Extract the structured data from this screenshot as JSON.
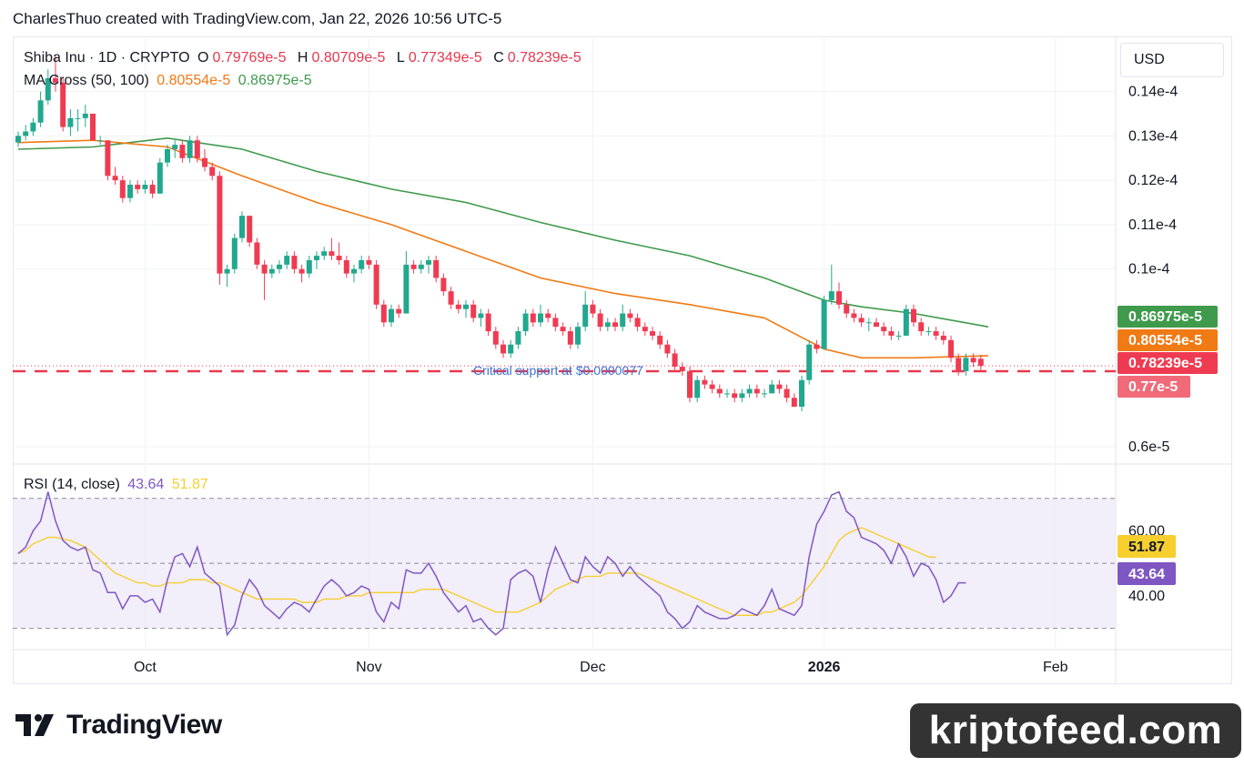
{
  "header": {
    "text": "CharlesThuo created with TradingView.com, Jan 22, 2026 10:56 UTC-5"
  },
  "legend": {
    "symbol": "Shiba Inu · 1D · CRYPTO",
    "o_label": "O",
    "o_value": "0.79769e-5",
    "h_label": "H",
    "h_value": "0.80709e-5",
    "l_label": "L",
    "l_value": "0.77349e-5",
    "c_label": "C",
    "c_value": "0.78239e-5",
    "ma_label": "MA Cross (50, 100)",
    "ma_fast": "0.80554e-5",
    "ma_slow": "0.86975e-5"
  },
  "rsi_legend": {
    "label": "RSI (14, close)",
    "rsi": "43.64",
    "rsi_ma": "51.87"
  },
  "currency_button": "USD",
  "annotation": "Critical support at $0.0000077",
  "branding": {
    "logo": "TradingView",
    "watermark": "kriptofeed.com"
  },
  "colors": {
    "up": "#22a88e",
    "down": "#ef3b52",
    "ma_fast": "#f07a14",
    "ma_slow": "#3f9a4c",
    "rsi": "#7e57c2",
    "rsi_ma": "#f6cf2f",
    "support": "#e8384e"
  },
  "chart_data": {
    "type": "candlestick",
    "title": "Shiba Inu · 1D · CRYPTO",
    "y_scale_unit": "e-5",
    "ylim": [
      0.565,
      1.52
    ],
    "y_ticks": [
      {
        "v": 1.4,
        "label": "0.14e-4"
      },
      {
        "v": 1.3,
        "label": "0.13e-4"
      },
      {
        "v": 1.2,
        "label": "0.12e-4"
      },
      {
        "v": 1.1,
        "label": "0.11e-4"
      },
      {
        "v": 1.0,
        "label": "0.1e-4"
      },
      {
        "v": 0.6,
        "label": "0.6e-5"
      }
    ],
    "x_ticks": [
      {
        "i": 17,
        "label": "Oct"
      },
      {
        "i": 47,
        "label": "Nov"
      },
      {
        "i": 77,
        "label": "Dec"
      },
      {
        "i": 108,
        "label": "2026"
      },
      {
        "i": 139,
        "label": "Feb"
      }
    ],
    "total_slots": 146,
    "candles": [
      [
        1.285,
        1.31,
        1.275,
        1.3
      ],
      [
        1.3,
        1.325,
        1.29,
        1.31
      ],
      [
        1.31,
        1.34,
        1.3,
        1.33
      ],
      [
        1.33,
        1.4,
        1.32,
        1.38
      ],
      [
        1.38,
        1.45,
        1.37,
        1.43
      ],
      [
        1.43,
        1.48,
        1.4,
        1.42
      ],
      [
        1.42,
        1.43,
        1.31,
        1.32
      ],
      [
        1.32,
        1.36,
        1.3,
        1.34
      ],
      [
        1.34,
        1.36,
        1.31,
        1.34
      ],
      [
        1.34,
        1.37,
        1.32,
        1.35
      ],
      [
        1.35,
        1.35,
        1.29,
        1.29
      ],
      [
        1.29,
        1.3,
        1.28,
        1.29
      ],
      [
        1.29,
        1.29,
        1.2,
        1.21
      ],
      [
        1.21,
        1.23,
        1.19,
        1.2
      ],
      [
        1.2,
        1.21,
        1.15,
        1.16
      ],
      [
        1.16,
        1.2,
        1.15,
        1.19
      ],
      [
        1.19,
        1.2,
        1.17,
        1.18
      ],
      [
        1.18,
        1.2,
        1.17,
        1.19
      ],
      [
        1.19,
        1.2,
        1.16,
        1.17
      ],
      [
        1.17,
        1.25,
        1.17,
        1.24
      ],
      [
        1.24,
        1.28,
        1.23,
        1.27
      ],
      [
        1.27,
        1.29,
        1.25,
        1.28
      ],
      [
        1.28,
        1.29,
        1.24,
        1.25
      ],
      [
        1.25,
        1.3,
        1.24,
        1.29
      ],
      [
        1.29,
        1.3,
        1.24,
        1.25
      ],
      [
        1.25,
        1.27,
        1.22,
        1.23
      ],
      [
        1.23,
        1.24,
        1.2,
        1.21
      ],
      [
        1.21,
        1.22,
        0.965,
        0.99
      ],
      [
        0.99,
        1.01,
        0.96,
        1.0
      ],
      [
        1.0,
        1.08,
        0.99,
        1.07
      ],
      [
        1.07,
        1.13,
        1.06,
        1.12
      ],
      [
        1.12,
        1.12,
        1.05,
        1.06
      ],
      [
        1.06,
        1.07,
        1.0,
        1.01
      ],
      [
        1.01,
        1.02,
        0.93,
        0.99
      ],
      [
        0.99,
        1.01,
        0.98,
        1.0
      ],
      [
        1.0,
        1.02,
        0.99,
        1.01
      ],
      [
        1.01,
        1.04,
        1.0,
        1.03
      ],
      [
        1.03,
        1.04,
        0.99,
        1.0
      ],
      [
        1.0,
        1.01,
        0.97,
        0.99
      ],
      [
        0.99,
        1.03,
        0.98,
        1.02
      ],
      [
        1.02,
        1.04,
        1.0,
        1.03
      ],
      [
        1.03,
        1.05,
        1.02,
        1.04
      ],
      [
        1.04,
        1.07,
        1.02,
        1.03
      ],
      [
        1.03,
        1.06,
        1.01,
        1.02
      ],
      [
        1.02,
        1.03,
        0.98,
        0.99
      ],
      [
        0.99,
        1.01,
        0.97,
        1.0
      ],
      [
        1.0,
        1.03,
        0.99,
        1.02
      ],
      [
        1.02,
        1.03,
        1.0,
        1.01
      ],
      [
        1.01,
        1.02,
        0.91,
        0.92
      ],
      [
        0.92,
        0.93,
        0.87,
        0.88
      ],
      [
        0.88,
        0.92,
        0.87,
        0.91
      ],
      [
        0.91,
        0.92,
        0.89,
        0.9
      ],
      [
        0.9,
        1.04,
        0.9,
        1.01
      ],
      [
        1.01,
        1.02,
        0.99,
        1.0
      ],
      [
        1.0,
        1.02,
        0.99,
        1.01
      ],
      [
        1.01,
        1.03,
        0.99,
        1.02
      ],
      [
        1.02,
        1.03,
        0.97,
        0.98
      ],
      [
        0.98,
        0.99,
        0.94,
        0.95
      ],
      [
        0.95,
        0.96,
        0.91,
        0.92
      ],
      [
        0.92,
        0.93,
        0.9,
        0.91
      ],
      [
        0.91,
        0.93,
        0.89,
        0.92
      ],
      [
        0.92,
        0.93,
        0.88,
        0.89
      ],
      [
        0.89,
        0.91,
        0.87,
        0.9
      ],
      [
        0.9,
        0.91,
        0.85,
        0.86
      ],
      [
        0.86,
        0.87,
        0.82,
        0.83
      ],
      [
        0.83,
        0.84,
        0.8,
        0.81
      ],
      [
        0.81,
        0.84,
        0.8,
        0.83
      ],
      [
        0.83,
        0.87,
        0.82,
        0.86
      ],
      [
        0.86,
        0.91,
        0.85,
        0.9
      ],
      [
        0.9,
        0.91,
        0.87,
        0.88
      ],
      [
        0.88,
        0.92,
        0.87,
        0.9
      ],
      [
        0.9,
        0.91,
        0.88,
        0.89
      ],
      [
        0.89,
        0.9,
        0.86,
        0.87
      ],
      [
        0.87,
        0.88,
        0.85,
        0.86
      ],
      [
        0.86,
        0.87,
        0.82,
        0.83
      ],
      [
        0.83,
        0.88,
        0.82,
        0.87
      ],
      [
        0.87,
        0.95,
        0.86,
        0.92
      ],
      [
        0.92,
        0.93,
        0.89,
        0.9
      ],
      [
        0.9,
        0.91,
        0.86,
        0.87
      ],
      [
        0.87,
        0.89,
        0.86,
        0.88
      ],
      [
        0.88,
        0.89,
        0.86,
        0.87
      ],
      [
        0.87,
        0.92,
        0.86,
        0.9
      ],
      [
        0.9,
        0.91,
        0.88,
        0.89
      ],
      [
        0.89,
        0.9,
        0.86,
        0.87
      ],
      [
        0.87,
        0.88,
        0.85,
        0.86
      ],
      [
        0.86,
        0.87,
        0.84,
        0.85
      ],
      [
        0.85,
        0.86,
        0.82,
        0.83
      ],
      [
        0.83,
        0.84,
        0.8,
        0.81
      ],
      [
        0.81,
        0.82,
        0.77,
        0.78
      ],
      [
        0.78,
        0.79,
        0.76,
        0.77
      ],
      [
        0.77,
        0.78,
        0.7,
        0.71
      ],
      [
        0.71,
        0.76,
        0.7,
        0.75
      ],
      [
        0.75,
        0.76,
        0.73,
        0.74
      ],
      [
        0.74,
        0.75,
        0.72,
        0.73
      ],
      [
        0.73,
        0.74,
        0.71,
        0.72
      ],
      [
        0.72,
        0.73,
        0.71,
        0.72
      ],
      [
        0.72,
        0.73,
        0.7,
        0.71
      ],
      [
        0.71,
        0.73,
        0.7,
        0.72
      ],
      [
        0.72,
        0.74,
        0.71,
        0.73
      ],
      [
        0.73,
        0.74,
        0.71,
        0.72
      ],
      [
        0.72,
        0.73,
        0.71,
        0.72
      ],
      [
        0.72,
        0.75,
        0.72,
        0.74
      ],
      [
        0.74,
        0.75,
        0.72,
        0.73
      ],
      [
        0.73,
        0.74,
        0.7,
        0.71
      ],
      [
        0.71,
        0.72,
        0.69,
        0.69
      ],
      [
        0.69,
        0.76,
        0.68,
        0.75
      ],
      [
        0.75,
        0.84,
        0.74,
        0.83
      ],
      [
        0.83,
        0.84,
        0.81,
        0.82
      ],
      [
        0.82,
        0.94,
        0.82,
        0.93
      ],
      [
        0.93,
        1.01,
        0.92,
        0.95
      ],
      [
        0.95,
        0.97,
        0.91,
        0.92
      ],
      [
        0.92,
        0.93,
        0.89,
        0.9
      ],
      [
        0.9,
        0.91,
        0.88,
        0.89
      ],
      [
        0.89,
        0.9,
        0.87,
        0.88
      ],
      [
        0.88,
        0.89,
        0.86,
        0.88
      ],
      [
        0.88,
        0.89,
        0.87,
        0.87
      ],
      [
        0.87,
        0.88,
        0.85,
        0.86
      ],
      [
        0.86,
        0.87,
        0.84,
        0.85
      ],
      [
        0.85,
        0.86,
        0.84,
        0.85
      ],
      [
        0.85,
        0.92,
        0.85,
        0.91
      ],
      [
        0.91,
        0.92,
        0.87,
        0.88
      ],
      [
        0.88,
        0.89,
        0.85,
        0.86
      ],
      [
        0.86,
        0.87,
        0.85,
        0.86
      ],
      [
        0.86,
        0.87,
        0.84,
        0.85
      ],
      [
        0.85,
        0.86,
        0.83,
        0.84
      ],
      [
        0.84,
        0.85,
        0.79,
        0.8
      ],
      [
        0.8,
        0.81,
        0.76,
        0.77
      ],
      [
        0.77,
        0.81,
        0.76,
        0.8
      ],
      [
        0.8,
        0.81,
        0.78,
        0.79
      ],
      [
        0.798,
        0.807,
        0.773,
        0.782
      ]
    ],
    "series": [
      {
        "name": "MA (50)",
        "x": [
          0,
          10,
          20,
          30,
          40,
          50,
          60,
          70,
          80,
          90,
          100,
          108,
          113,
          120,
          130
        ],
        "values": [
          1.285,
          1.29,
          1.275,
          1.21,
          1.15,
          1.1,
          1.04,
          0.98,
          0.945,
          0.92,
          0.89,
          0.82,
          0.8,
          0.8,
          0.805
        ]
      },
      {
        "name": "MA (100)",
        "x": [
          0,
          10,
          20,
          30,
          40,
          50,
          60,
          70,
          80,
          90,
          100,
          108,
          113,
          120,
          130
        ],
        "values": [
          1.27,
          1.275,
          1.295,
          1.27,
          1.22,
          1.18,
          1.15,
          1.105,
          1.065,
          1.03,
          0.98,
          0.93,
          0.915,
          0.9,
          0.87
        ]
      }
    ],
    "support_level": 0.77,
    "price_tags": [
      {
        "value": "0.86975e-5",
        "v": 0.86975,
        "color": "#3f9a4c"
      },
      {
        "value": "0.80554e-5",
        "v": 0.80554,
        "color": "#f07a14"
      },
      {
        "value": "0.78239e-5",
        "v": 0.78239,
        "color": "#ef3b52"
      },
      {
        "value": "0.77e-5",
        "v": 0.77,
        "color": "#f16a7a"
      }
    ],
    "rsi": {
      "ylim": [
        24,
        80
      ],
      "bands": [
        30,
        50,
        70
      ],
      "y_ticks": [
        {
          "v": 60,
          "label": "60.00"
        },
        {
          "v": 40,
          "label": "40.00"
        }
      ],
      "values": [
        53,
        55,
        60,
        63,
        72,
        63,
        57,
        55,
        54,
        55,
        48,
        47,
        41,
        41,
        36,
        40,
        40,
        38,
        39,
        35,
        45,
        52,
        53,
        49,
        55,
        47,
        45,
        43,
        28,
        31,
        40,
        45,
        42,
        37,
        35,
        33,
        36,
        38,
        37,
        35,
        39,
        43,
        45,
        43,
        40,
        41,
        43,
        42,
        35,
        32,
        38,
        36,
        48,
        47,
        47,
        50,
        46,
        41,
        38,
        35,
        37,
        32,
        33,
        30,
        28,
        30,
        45,
        47,
        48,
        46,
        38,
        48,
        55,
        50,
        45,
        44,
        52,
        49,
        47,
        52,
        50,
        46,
        49,
        46,
        44,
        42,
        40,
        35,
        33,
        30,
        32,
        37,
        35,
        34,
        33,
        33,
        34,
        36,
        35,
        34,
        37,
        42,
        36,
        35,
        34,
        37,
        52,
        62,
        66,
        71,
        72,
        66,
        64,
        58,
        57,
        56,
        54,
        50,
        56,
        52,
        46,
        50,
        49,
        45,
        38,
        40,
        44,
        44
      ],
      "ma": [
        53,
        54,
        56,
        57,
        58,
        58,
        57.5,
        57,
        56,
        55,
        53,
        51,
        49,
        47,
        46,
        45,
        44,
        44,
        43,
        43,
        44,
        44,
        44,
        45,
        45,
        45,
        44,
        44,
        43,
        42,
        41,
        40,
        39,
        39,
        39,
        39,
        39,
        39,
        38,
        38,
        38,
        39,
        39,
        39,
        40,
        40,
        40,
        41,
        41,
        41,
        41,
        41,
        41,
        41,
        42,
        42,
        42,
        42,
        41,
        40,
        39,
        38,
        37,
        36,
        35,
        35,
        35,
        35,
        36,
        37,
        38,
        40,
        42,
        43,
        44,
        45,
        46,
        46,
        46,
        47,
        47,
        47,
        47,
        47,
        46,
        45,
        44,
        43,
        42,
        41,
        40,
        39,
        38,
        37,
        36,
        35,
        34,
        34,
        34,
        34,
        35,
        35,
        36,
        37,
        38,
        40,
        43,
        46,
        49,
        53,
        57,
        59,
        60,
        61,
        60,
        59,
        58,
        57,
        56,
        55,
        54,
        53,
        52,
        51.87
      ]
    }
  }
}
